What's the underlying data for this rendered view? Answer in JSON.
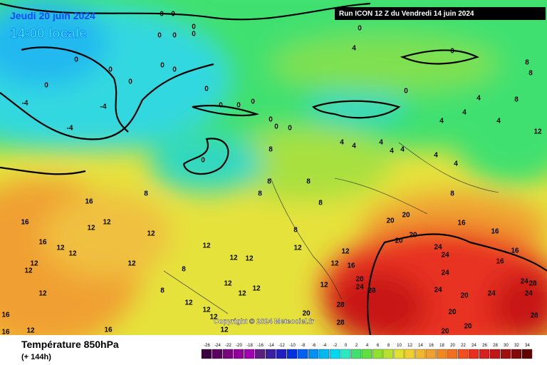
{
  "header": {
    "date": "Jeudi 20 juin 2024",
    "time": "14:00 locale",
    "run": "Run ICON 12 Z du Vendredi 14 juin 2024"
  },
  "copyright": "Copyright © 2024 Meteociel.fr",
  "legend": {
    "title": "Température 850hPa",
    "subtitle": "(+ 144h)",
    "scale": [
      -26,
      -24,
      -22,
      -20,
      -18,
      -16,
      -14,
      -12,
      -10,
      -8,
      -6,
      -4,
      -2,
      0,
      2,
      4,
      6,
      8,
      10,
      12,
      14,
      16,
      18,
      20,
      22,
      24,
      26,
      28,
      30,
      32,
      34
    ]
  },
  "contour_labels": [
    0,
    0,
    0,
    0,
    0,
    0,
    0,
    0,
    0,
    0,
    0,
    0,
    0,
    0,
    0,
    0,
    0,
    0,
    0,
    0,
    0,
    0,
    0,
    -4,
    -4,
    -4,
    4,
    4,
    4,
    4,
    4,
    4,
    4,
    4,
    4,
    4,
    4,
    4,
    8,
    8,
    8,
    8,
    8,
    8,
    8,
    8,
    8,
    8,
    8,
    8,
    8,
    12,
    12,
    12,
    12,
    12,
    12,
    12,
    12,
    12,
    12,
    12,
    12,
    12,
    12,
    12,
    12,
    12,
    12,
    12,
    12,
    12,
    12,
    12,
    12,
    12,
    16,
    16,
    16,
    16,
    16,
    16,
    16,
    16,
    16,
    16,
    16,
    20,
    20,
    20,
    20,
    20,
    20,
    20,
    20,
    20,
    20,
    24,
    24,
    24,
    24,
    24,
    24,
    24,
    24,
    28,
    28,
    28,
    28,
    28
  ]
}
